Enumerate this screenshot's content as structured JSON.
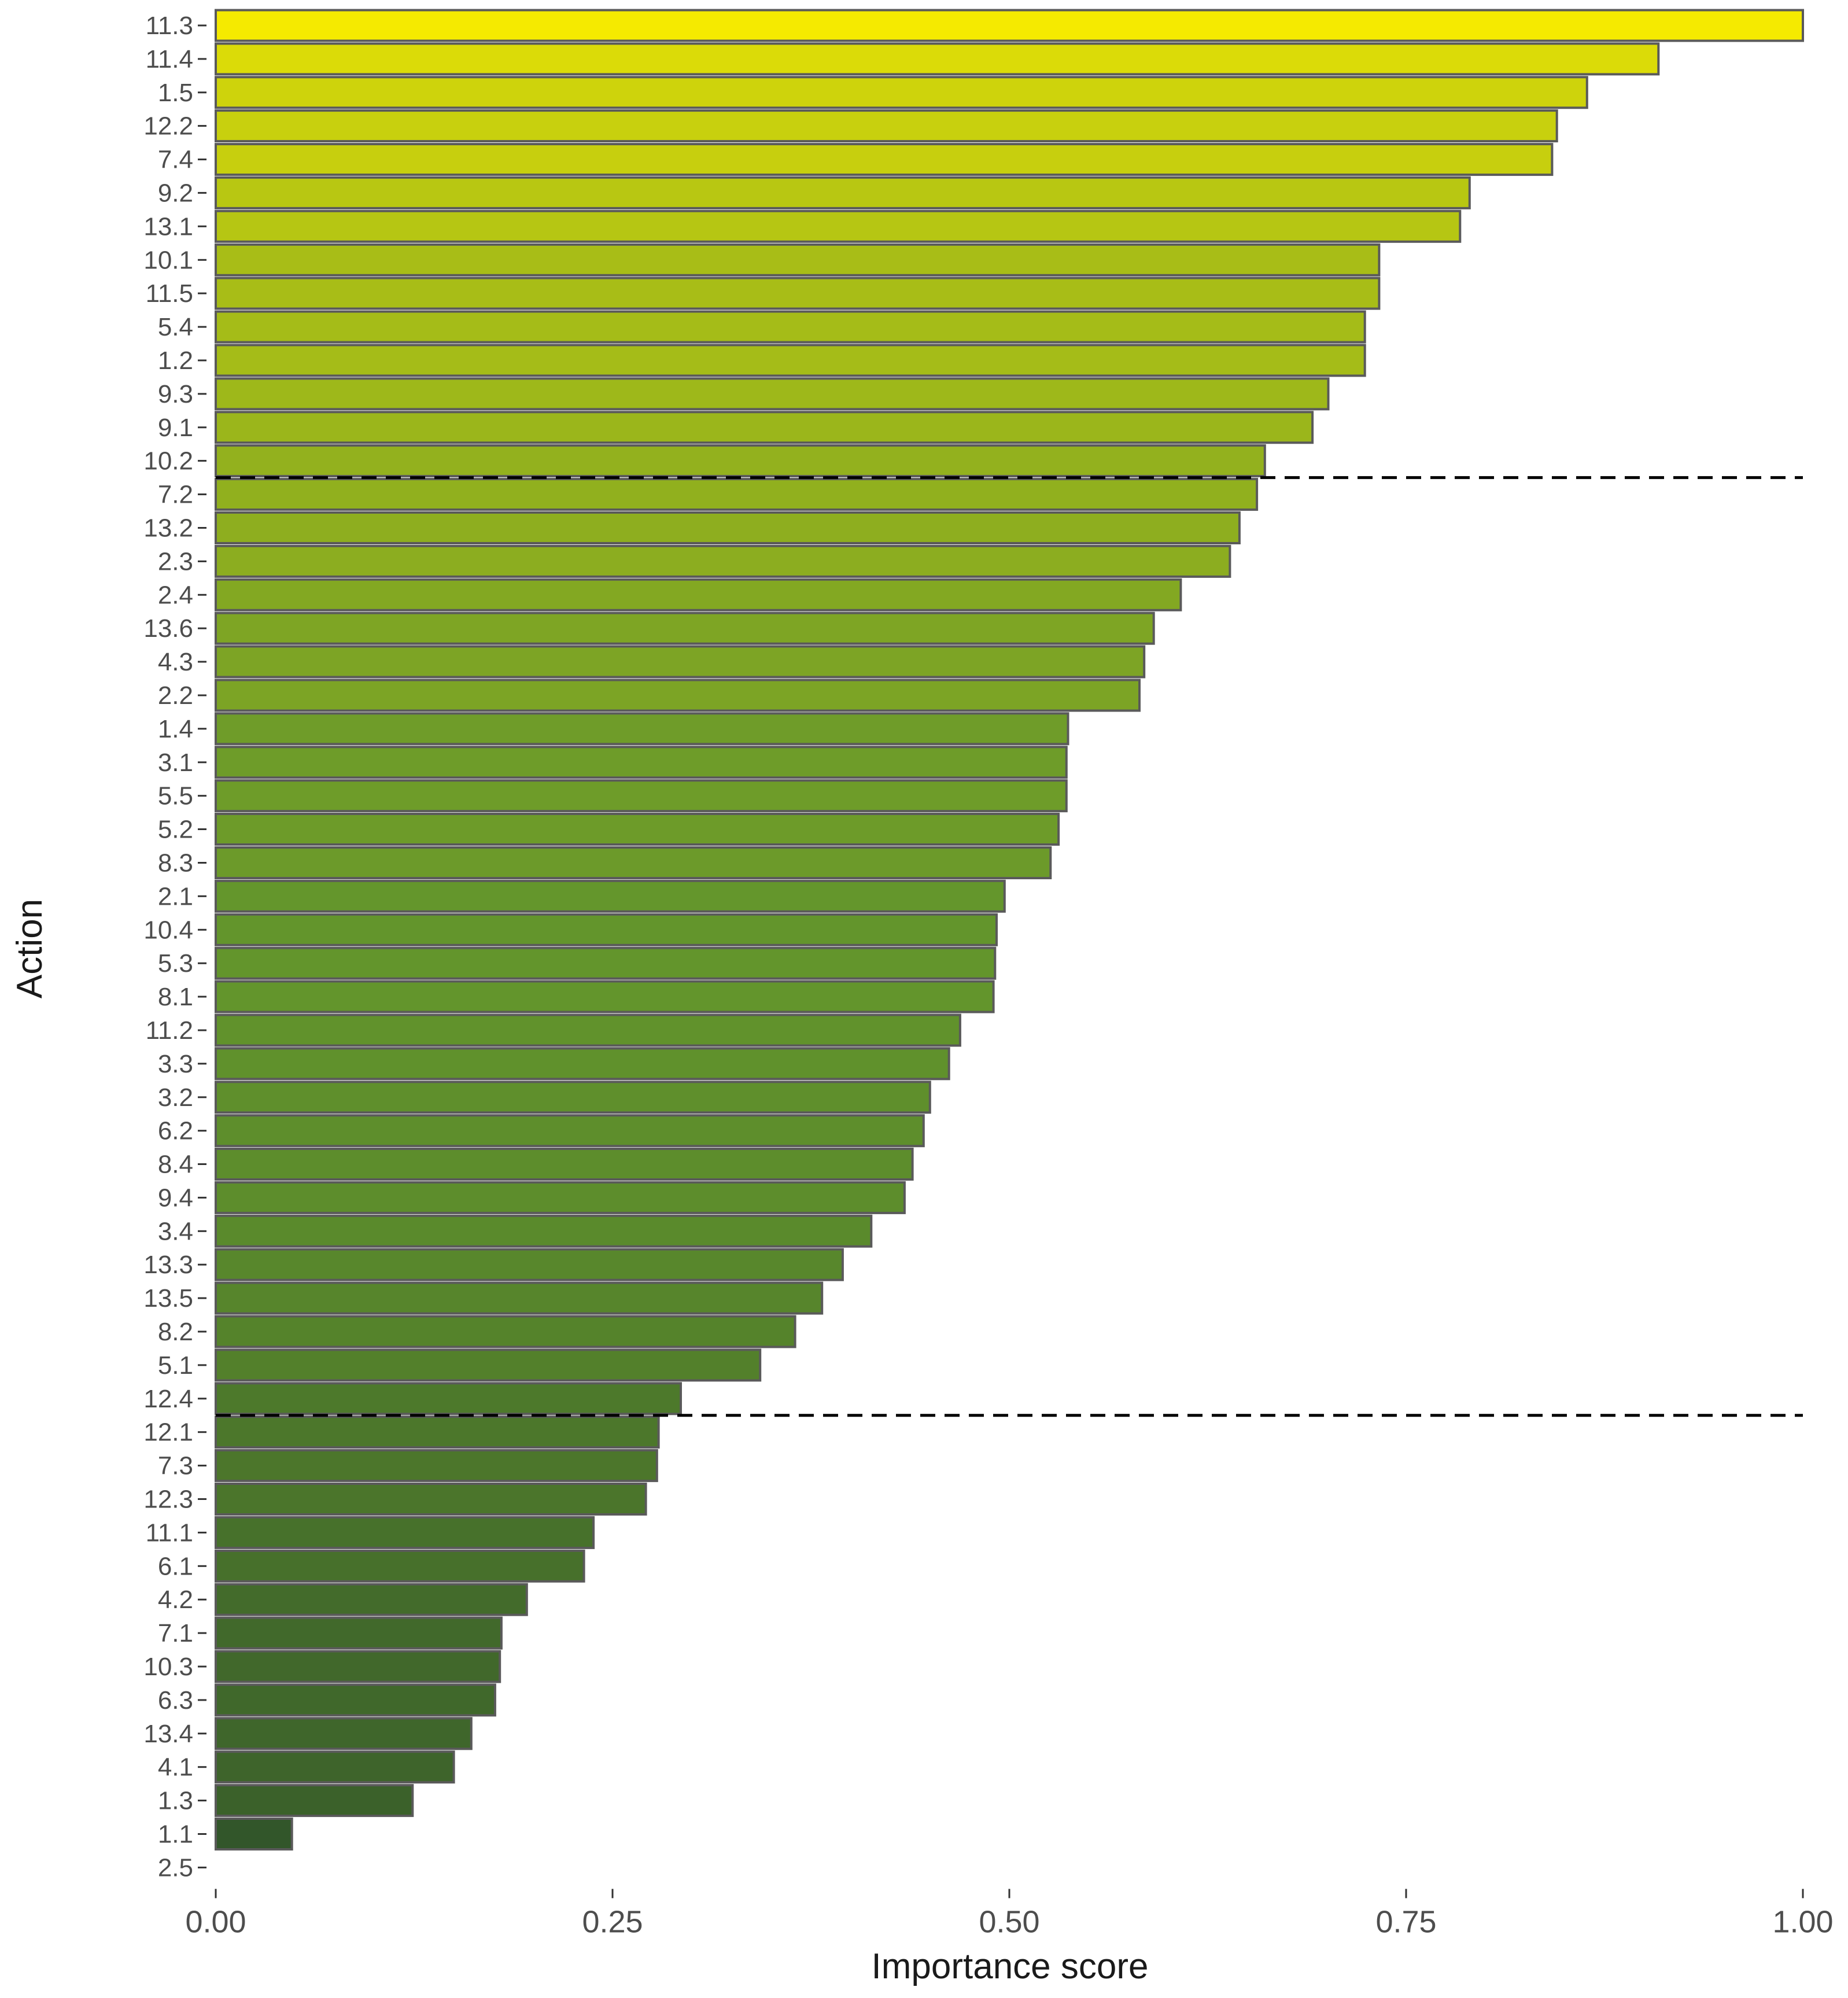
{
  "chart_data": {
    "type": "bar",
    "orientation": "horizontal",
    "xlabel": "Importance score",
    "ylabel": "Action",
    "xlim": [
      0,
      1
    ],
    "x_ticks": [
      "0.00",
      "0.25",
      "0.50",
      "0.75",
      "1.00"
    ],
    "x_tick_values": [
      0,
      0.25,
      0.5,
      0.75,
      1
    ],
    "grid": false,
    "legend": "none",
    "categories": [
      "11.3",
      "11.4",
      "1.5",
      "12.2",
      "7.4",
      "9.2",
      "13.1",
      "10.1",
      "11.5",
      "5.4",
      "1.2",
      "9.3",
      "9.1",
      "10.2",
      "7.2",
      "13.2",
      "2.3",
      "2.4",
      "13.6",
      "4.3",
      "2.2",
      "1.4",
      "3.1",
      "5.5",
      "5.2",
      "8.3",
      "2.1",
      "10.4",
      "5.3",
      "8.1",
      "11.2",
      "3.3",
      "3.2",
      "6.2",
      "8.4",
      "9.4",
      "3.4",
      "13.3",
      "13.5",
      "8.2",
      "5.1",
      "12.4",
      "12.1",
      "7.3",
      "12.3",
      "11.1",
      "6.1",
      "4.2",
      "7.1",
      "10.3",
      "6.3",
      "13.4",
      "4.1",
      "1.3",
      "1.1",
      "2.5"
    ],
    "values": [
      1.0,
      0.909,
      0.864,
      0.845,
      0.842,
      0.79,
      0.784,
      0.733,
      0.733,
      0.724,
      0.724,
      0.701,
      0.691,
      0.661,
      0.656,
      0.645,
      0.639,
      0.608,
      0.591,
      0.585,
      0.582,
      0.537,
      0.536,
      0.536,
      0.531,
      0.526,
      0.497,
      0.492,
      0.491,
      0.49,
      0.469,
      0.462,
      0.45,
      0.446,
      0.439,
      0.434,
      0.413,
      0.395,
      0.382,
      0.365,
      0.343,
      0.293,
      0.279,
      0.278,
      0.271,
      0.238,
      0.232,
      0.196,
      0.18,
      0.179,
      0.176,
      0.161,
      0.15,
      0.124,
      0.048,
      0.0
    ],
    "reference_lines": [
      {
        "between": [
          "10.2",
          "7.2"
        ],
        "style": "dashed"
      },
      {
        "between": [
          "12.4",
          "12.1"
        ],
        "style": "dashed"
      }
    ],
    "colors": {
      "high": "#f5ea00",
      "mid": "#64962c",
      "low": "#2d4f2a",
      "bar_outline": "#5a5a5a",
      "reference_line": "#000000",
      "tick_label": "#4d4d4d",
      "axis_title": "#1a1a1a"
    }
  }
}
